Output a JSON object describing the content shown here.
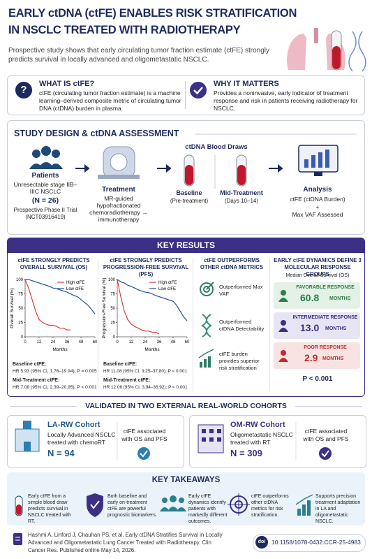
{
  "header": {
    "title_line1": "EARLY ctDNA (ctFE) ENABLES RISK STRATIFICATION",
    "title_line2": "IN NSCLC TREATED WITH RADIOTHERAPY",
    "subtitle": "Prospective study shows that early circulating tumor fraction estimate (ctFE) strongly predicts survival in locally advanced and oligometastatic NSCLC."
  },
  "what_is": {
    "icon": "?",
    "title": "WHAT IS ctFE?",
    "text": "ctFE (circulating tumor fraction estimate) is a machine learning–derived composite metric of circulating tumor DNA (ctDNA) burden in plasma."
  },
  "why_matters": {
    "title": "WHY IT MATTERS",
    "text": "Provides a noninvasive, early indicator of treatment response and risk in patients receiving radiotherapy for NSCLC."
  },
  "study_design": {
    "title": "STUDY DESIGN & ctDNA ASSESSMENT",
    "patients": {
      "label": "Patients",
      "text": "Unresectable stage IIB–IIIC NSCLC",
      "n": "(N = 26)",
      "trial": "Prospective Phase II Trial (NCT03916419)"
    },
    "treatment": {
      "label": "Treatment",
      "text": "MR-guided hypofractionated chemoradiotherapy → immunotherapy"
    },
    "blood_draws": {
      "title": "ctDNA Blood Draws",
      "baseline": "Baseline",
      "baseline_sub": "(Pre-treatment)",
      "mid": "Mid-Treatment",
      "mid_sub": "(Days 10–14)"
    },
    "analysis": {
      "label": "Analysis",
      "line1": "ctFE (ctDNA Burden)",
      "line2": "+",
      "line3": "Max VAF Assessed"
    }
  },
  "key_results": {
    "title": "KEY RESULTS",
    "os": {
      "title": "ctFE STRONGLY PREDICTS OVERALL SURVIVAL (OS)",
      "baseline": "Baseline ctFE:",
      "baseline_stat": "HR 5.93 (95% CI, 1.76–19.94); P = 0.005",
      "mid": "Mid-Treatment ctFE:",
      "mid_stat": "HR 7.08 (95% CI, 2.39–20.95); P < 0.001"
    },
    "pfs": {
      "title": "ctFE STRONGLY PREDICTS PROGRESSION-FREE SURVIVAL (PFS)",
      "baseline": "Baseline ctFE:",
      "baseline_stat": "HR 11.08 (95% CI, 3.25–37.80); P < 0.001",
      "mid": "Mid-Treatment ctFE:",
      "mid_stat": "HR 12.06 (95% CI, 3.94–36.92); P < 0.001"
    },
    "metrics": {
      "title": "ctFE OUTPERFORMS OTHER ctDNA METRICS",
      "items": [
        "Outperformed Max VAF",
        "Outperformed ctDNA Detectability",
        "ctFE burden provides superior risk stratification"
      ]
    },
    "dynamics": {
      "title": "EARLY ctFE DYNAMICS DEFINE 3 MOLECULAR RESPONSE GROUPS",
      "subtitle": "Median Overall Survival (OS)",
      "groups": [
        {
          "label": "FAVORABLE RESPONSE",
          "value": "60.8",
          "unit": "MONTHS"
        },
        {
          "label": "INTERMEDIATE RESPONSE",
          "value": "13.0",
          "unit": "MONTHS"
        },
        {
          "label": "POOR RESPONSE",
          "value": "2.9",
          "unit": "MONTHS"
        }
      ],
      "p": "P < 0.001"
    }
  },
  "chart_data": [
    {
      "type": "line",
      "xlabel": "Months",
      "ylabel": "Overall Survival (%)",
      "x": [
        0,
        3,
        6,
        9,
        12,
        15,
        18,
        21,
        24,
        27,
        30,
        33,
        36,
        39,
        42,
        45,
        48,
        51,
        54,
        57,
        60
      ],
      "xlim": [
        0,
        60
      ],
      "xticks": [
        0,
        12,
        24,
        36,
        48,
        60
      ],
      "ylim": [
        0,
        100
      ],
      "yticks": [
        0,
        25,
        50,
        75,
        100
      ],
      "series": [
        {
          "name": "High ctFE",
          "color": "#e53935",
          "values": [
            100,
            85,
            65,
            45,
            30,
            25,
            22,
            20,
            20,
            18,
            15,
            15,
            12,
            12,
            null,
            null,
            null,
            null,
            null,
            null,
            null
          ]
        },
        {
          "name": "Low ctFE",
          "color": "#1e4fa0",
          "values": [
            100,
            100,
            98,
            96,
            94,
            92,
            90,
            88,
            85,
            84,
            82,
            80,
            78,
            75,
            72,
            70,
            65,
            60,
            55,
            48,
            40
          ]
        }
      ]
    },
    {
      "type": "line",
      "xlabel": "Months",
      "ylabel": "Progression-Free Survival (%)",
      "x": [
        0,
        3,
        6,
        9,
        12,
        15,
        18,
        21,
        24,
        27,
        30,
        33,
        36,
        39,
        42,
        45,
        48,
        51,
        54,
        57,
        60
      ],
      "xlim": [
        0,
        60
      ],
      "xticks": [
        0,
        12,
        24,
        36,
        48,
        60
      ],
      "ylim": [
        0,
        100
      ],
      "yticks": [
        0,
        25,
        50,
        75,
        100
      ],
      "series": [
        {
          "name": "High ctFE",
          "color": "#e53935",
          "values": [
            100,
            70,
            45,
            30,
            22,
            18,
            15,
            12,
            10,
            10,
            8,
            8,
            5,
            null,
            null,
            null,
            null,
            null,
            null,
            null,
            null
          ]
        },
        {
          "name": "Low ctFE",
          "color": "#1e4fa0",
          "values": [
            100,
            96,
            94,
            90,
            88,
            85,
            82,
            80,
            78,
            77,
            75,
            72,
            70,
            68,
            66,
            64,
            62,
            55,
            45,
            35,
            28
          ]
        }
      ]
    }
  ],
  "validated": {
    "title": "VALIDATED IN TWO EXTERNAL REAL-WORLD COHORTS",
    "cohorts": [
      {
        "name": "LA-RW Cohort",
        "text": "Locally Advanced NSCLC treated with chemoRT",
        "n": "N = 94",
        "result": "ctFE associated with OS and PFS"
      },
      {
        "name": "OM-RW Cohort",
        "text": "Oligometastatic NSCLC treated with RT",
        "n": "N = 309",
        "result": "ctFE associated with OS and PFS"
      }
    ]
  },
  "takeaways": {
    "title": "KEY TAKEAWAYS",
    "items": [
      "Early ctFE from a simple blood draw predicts survival in NSCLC treated with RT.",
      "Both baseline and early on-treatment ctFE are powerful prognostic biomarkers.",
      "Early ctFE dynamics identify patients with markedly different outcomes.",
      "ctFE outperforms other ctDNA metrics for risk stratification.",
      "Supports precision treatment adaptation in LA and oligometastatic NSCLC."
    ]
  },
  "citation": {
    "text": "Hashmi A, Linford J, Chauhan PS, et al. Early ctDNA Stratifies Survival in Locally Advanced and Oligometastatic Lung Cancer Treated with Radiotherapy. Clin Cancer Res. Published online May 14, 2026.",
    "doi_badge": "doi",
    "doi": "10.1158/1078-0432.CCR-25-4983"
  }
}
